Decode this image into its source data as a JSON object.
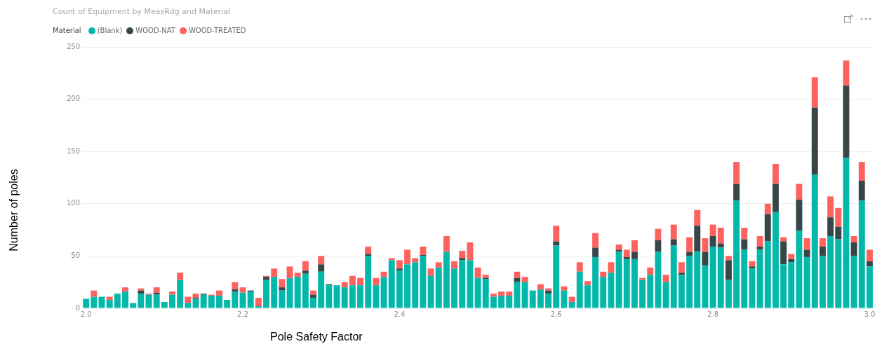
{
  "chart_data": {
    "type": "bar",
    "title": "Count of Equipment by MeasRdg and Material",
    "xlabel": "Pole Safety Factor",
    "ylabel": "Number of poles",
    "legend_title": "Material",
    "legend": "top left",
    "stacked": true,
    "grid": "y",
    "x": [
      2,
      2.01,
      2.02,
      2.03,
      2.04,
      2.05,
      2.06,
      2.07,
      2.08,
      2.09,
      2.1,
      2.11,
      2.12,
      2.13,
      2.14,
      2.15,
      2.16,
      2.17,
      2.18,
      2.19,
      2.2,
      2.21,
      2.22,
      2.23,
      2.24,
      2.25,
      2.26,
      2.27,
      2.28,
      2.29,
      2.3,
      2.31,
      2.32,
      2.33,
      2.34,
      2.35,
      2.36,
      2.37,
      2.38,
      2.39,
      2.4,
      2.41,
      2.42,
      2.43,
      2.44,
      2.45,
      2.46,
      2.47,
      2.48,
      2.49,
      2.5,
      2.51,
      2.52,
      2.53,
      2.54,
      2.55,
      2.56,
      2.57,
      2.58,
      2.59,
      2.6,
      2.61,
      2.62,
      2.63,
      2.64,
      2.65,
      2.66,
      2.67,
      2.68,
      2.69,
      2.7,
      2.71,
      2.72,
      2.73,
      2.74,
      2.75,
      2.76,
      2.77,
      2.78,
      2.79,
      2.8,
      2.81,
      2.82,
      2.83,
      2.84,
      2.85,
      2.86,
      2.87,
      2.88,
      2.89,
      2.9,
      2.91,
      2.92,
      2.93,
      2.94,
      2.95,
      2.96,
      2.97,
      2.98,
      2.99,
      3
    ],
    "xlim": [
      1.995,
      3.005
    ],
    "xticks": [
      {
        "value": 2,
        "label": "2.0"
      },
      {
        "value": 2.2,
        "label": "2.2"
      },
      {
        "value": 2.4,
        "label": "2.4"
      },
      {
        "value": 2.6,
        "label": "2.6"
      },
      {
        "value": 2.8,
        "label": "2.8"
      },
      {
        "value": 3,
        "label": "3.0"
      }
    ],
    "ylim": [
      0,
      250
    ],
    "yticks": [
      0,
      50,
      100,
      150,
      200,
      250
    ],
    "series": [
      {
        "name": "(Blank)",
        "color": "#01b8aa",
        "values": [
          9,
          11,
          11,
          8,
          14,
          16,
          5,
          14,
          13,
          13,
          6,
          13,
          27,
          5,
          9,
          13,
          12,
          12,
          8,
          16,
          15,
          16,
          2,
          27,
          30,
          17,
          29,
          30,
          33,
          10,
          35,
          22,
          22,
          20,
          22,
          22,
          50,
          22,
          30,
          46,
          36,
          42,
          44,
          50,
          31,
          39,
          54,
          38,
          46,
          46,
          29,
          28,
          11,
          12,
          12,
          25,
          25,
          17,
          18,
          14,
          60,
          17,
          6,
          35,
          22,
          49,
          30,
          34,
          54,
          47,
          47,
          27,
          32,
          54,
          25,
          60,
          32,
          50,
          54,
          41,
          59,
          58,
          27,
          103,
          56,
          38,
          56,
          64,
          92,
          42,
          44,
          74,
          49,
          128,
          50,
          69,
          66,
          144,
          50,
          103,
          40
        ]
      },
      {
        "name": "WOOD-NAT",
        "color": "#374649",
        "values": [
          0,
          0,
          0,
          0,
          0,
          0,
          0,
          3,
          0,
          2,
          0,
          0,
          0,
          0,
          1,
          1,
          0,
          0,
          0,
          2,
          0,
          1,
          0,
          3,
          0,
          3,
          0,
          0,
          3,
          3,
          7,
          1,
          0,
          0,
          0,
          0,
          2,
          0,
          0,
          0,
          2,
          0,
          0,
          1,
          0,
          0,
          0,
          0,
          2,
          0,
          0,
          1,
          0,
          0,
          0,
          4,
          0,
          0,
          0,
          3,
          4,
          0,
          0,
          0,
          0,
          9,
          0,
          0,
          2,
          2,
          7,
          0,
          0,
          11,
          0,
          6,
          2,
          4,
          25,
          13,
          10,
          4,
          19,
          16,
          10,
          2,
          3,
          26,
          27,
          22,
          3,
          30,
          7,
          64,
          9,
          18,
          12,
          69,
          13,
          19,
          5
        ]
      },
      {
        "name": "WOOD-TREATED",
        "color": "#fd625e",
        "values": [
          0,
          6,
          0,
          3,
          0,
          4,
          0,
          2,
          1,
          5,
          0,
          3,
          7,
          6,
          4,
          0,
          1,
          5,
          0,
          7,
          5,
          0,
          8,
          1,
          8,
          8,
          11,
          4,
          9,
          4,
          8,
          0,
          0,
          5,
          9,
          7,
          7,
          7,
          5,
          2,
          8,
          14,
          4,
          8,
          7,
          5,
          15,
          7,
          7,
          17,
          10,
          3,
          3,
          4,
          4,
          6,
          5,
          0,
          5,
          2,
          15,
          4,
          5,
          9,
          4,
          14,
          5,
          10,
          5,
          7,
          11,
          2,
          7,
          11,
          7,
          14,
          10,
          14,
          15,
          13,
          11,
          15,
          4,
          21,
          11,
          5,
          10,
          10,
          19,
          4,
          5,
          15,
          11,
          29,
          8,
          20,
          18,
          24,
          6,
          18,
          11
        ]
      }
    ]
  }
}
